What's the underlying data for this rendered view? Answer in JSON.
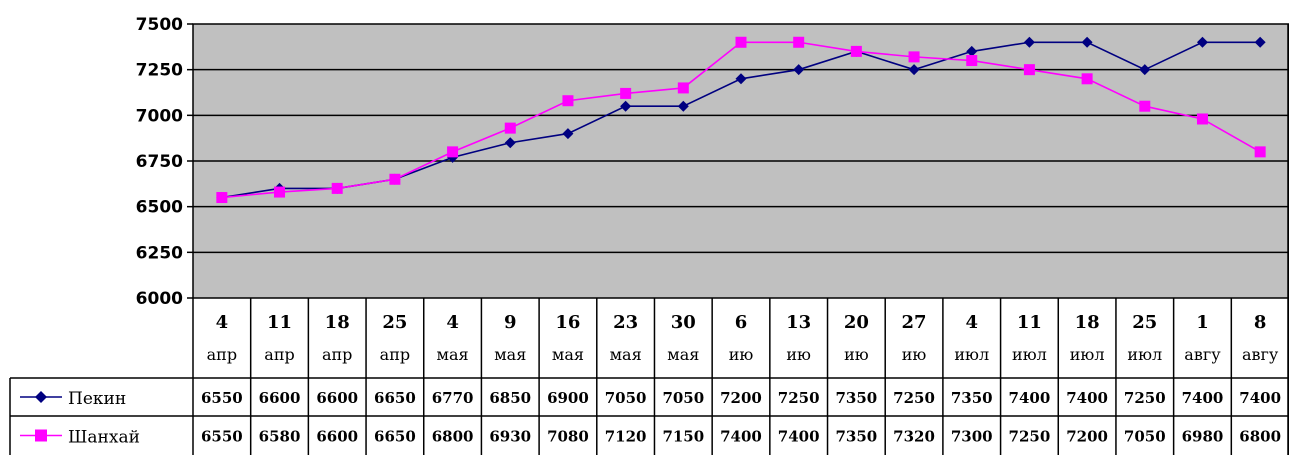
{
  "chart_data": {
    "type": "line",
    "categories": [
      [
        "4",
        "апр"
      ],
      [
        "11",
        "апр"
      ],
      [
        "18",
        "апр"
      ],
      [
        "25",
        "апр"
      ],
      [
        "4",
        "мая"
      ],
      [
        "9",
        "мая"
      ],
      [
        "16",
        "мая"
      ],
      [
        "23",
        "мая"
      ],
      [
        "30",
        "мая"
      ],
      [
        "6",
        "ию"
      ],
      [
        "13",
        "ию"
      ],
      [
        "20",
        "ию"
      ],
      [
        "27",
        "ию"
      ],
      [
        "4",
        "июл"
      ],
      [
        "11",
        "июл"
      ],
      [
        "18",
        "июл"
      ],
      [
        "25",
        "июл"
      ],
      [
        "1",
        "авгу"
      ],
      [
        "8",
        "авгу"
      ]
    ],
    "series": [
      {
        "name": "Пекин",
        "color": "#000080",
        "marker": "diamond",
        "values": [
          6550,
          6600,
          6600,
          6650,
          6770,
          6850,
          6900,
          7050,
          7050,
          7200,
          7250,
          7350,
          7250,
          7350,
          7400,
          7400,
          7250,
          7400,
          7400
        ]
      },
      {
        "name": "Шанхай",
        "color": "#FF00FF",
        "marker": "square",
        "values": [
          6550,
          6580,
          6600,
          6650,
          6800,
          6930,
          7080,
          7120,
          7150,
          7400,
          7400,
          7350,
          7320,
          7300,
          7250,
          7200,
          7050,
          6980,
          6800
        ]
      }
    ],
    "ylim": [
      6000,
      7500
    ],
    "yticks": [
      6000,
      6250,
      6500,
      6750,
      7000,
      7250,
      7500
    ],
    "plot_background": "#C0C0C0",
    "grid": true,
    "data_table": true
  }
}
